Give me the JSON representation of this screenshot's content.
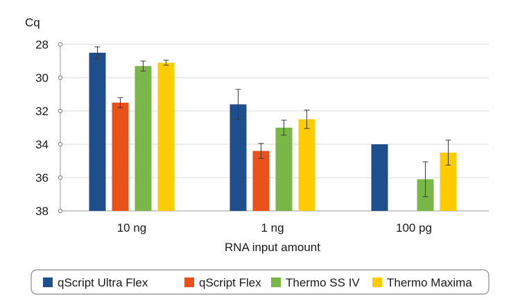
{
  "chart_data": {
    "type": "bar",
    "categories": [
      "10 ng",
      "1 ng",
      "100 pg"
    ],
    "series": [
      {
        "name": "qScript Ultra Flex",
        "color": "#1f4e8c",
        "values": [
          28.5,
          31.6,
          34.0
        ],
        "errors": [
          0.35,
          0.9,
          null
        ]
      },
      {
        "name": "qScript Flex",
        "color": "#e8511a",
        "values": [
          31.5,
          34.4,
          null
        ],
        "errors": [
          0.3,
          0.45,
          null
        ]
      },
      {
        "name": "Thermo SS IV",
        "color": "#7ab648",
        "values": [
          29.3,
          33.0,
          36.1
        ],
        "errors": [
          0.3,
          0.45,
          1.05
        ]
      },
      {
        "name": "Thermo Maxima",
        "color": "#ffcc00",
        "values": [
          29.1,
          32.5,
          34.5
        ],
        "errors": [
          0.15,
          0.55,
          0.75
        ]
      }
    ],
    "ylabel": "Cq",
    "xlabel": "RNA input amount",
    "yticks": [
      "28",
      "30",
      "32",
      "34",
      "36",
      "38"
    ],
    "ylim": [
      28,
      38
    ],
    "y_inverted": true,
    "grid": true,
    "legend_position": "bottom"
  }
}
